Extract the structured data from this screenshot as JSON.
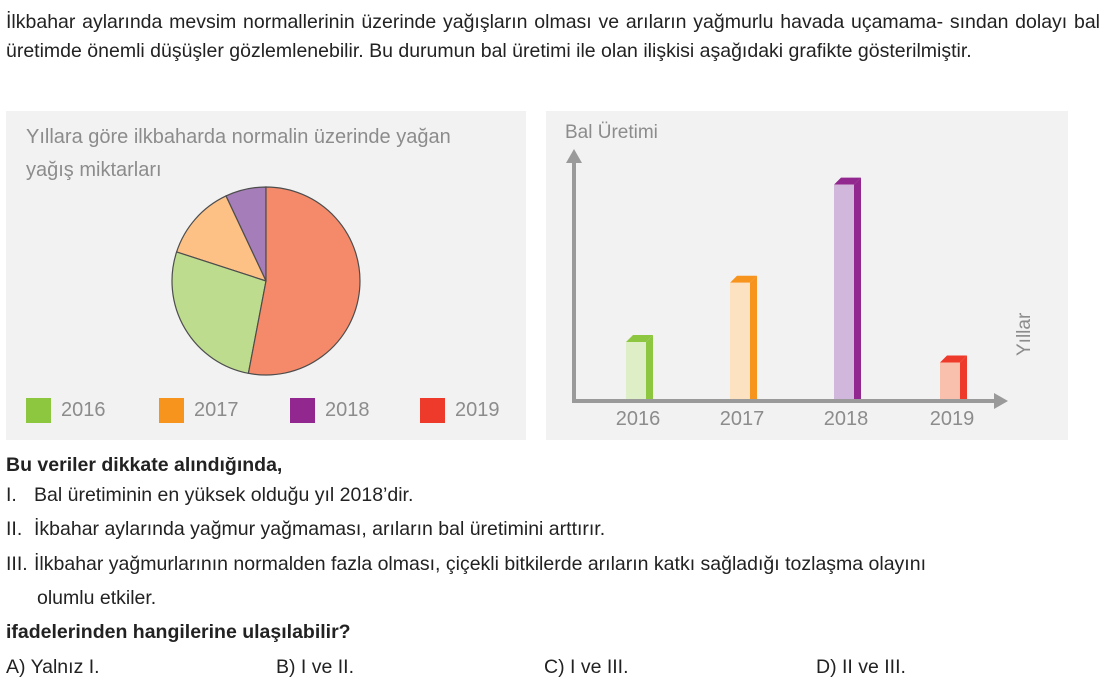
{
  "intro": {
    "line1": "İlkbahar aylarında mevsim normallerinin üzerinde yağışların olması ve arıların yağmurlu havada uçamama-",
    "line2": "sından dolayı bal üretimde önemli düşüşler gözlemlenebilir. Bu durumun bal üretimi ile olan ilişkisi aşağıdaki",
    "line3": "grafikte gösterilmiştir."
  },
  "chart_data": [
    {
      "type": "pie",
      "title_line1": "Yıllara göre ilkbaharda normalin üzerinde yağan",
      "title_line2": "yağış miktarları",
      "categories": [
        "2016",
        "2017",
        "2018",
        "2019"
      ],
      "values": [
        27,
        13,
        7,
        53
      ],
      "colors": [
        "#bddc8e",
        "#fdc185",
        "#a57db8",
        "#f58a6a"
      ],
      "legend_colors": [
        "#8dc63f",
        "#f7941d",
        "#92278f",
        "#ed3a2a"
      ],
      "legend": "bottom"
    },
    {
      "type": "bar",
      "ylabel": "Bal Üretimi",
      "xlabel": "Yıllar",
      "categories": [
        "2016",
        "2017",
        "2018",
        "2019"
      ],
      "values": [
        2.5,
        5.1,
        9.4,
        1.6
      ],
      "ylim": [
        0,
        10
      ],
      "face_colors": [
        "#deeec6",
        "#fde2c2",
        "#d2b7dd",
        "#f9c0ad"
      ],
      "side_colors": [
        "#8dc63f",
        "#f7941d",
        "#92278f",
        "#ed3a2a"
      ],
      "grid": false
    }
  ],
  "question": {
    "lead": "Bu veriler dikkate alındığında,",
    "items": [
      {
        "num": "I.",
        "text": "Bal üretiminin en yüksek olduğu yıl 2018’dir."
      },
      {
        "num": "II.",
        "text": "İkbahar aylarında yağmur yağmaması, arıların bal üretimini arttırır."
      },
      {
        "num": "III.",
        "text": "İlkbahar yağmurlarının normalden fazla olması, çiçekli bitkilerde arıların katkı sağladığı tozlaşma olayını",
        "text2": "olumlu etkiler."
      }
    ],
    "ask": "ifadelerinden hangilerine ulaşılabilir?",
    "options": [
      "A) Yalnız I.",
      "B) I ve II.",
      "C) I ve III.",
      "D) II ve III."
    ]
  }
}
